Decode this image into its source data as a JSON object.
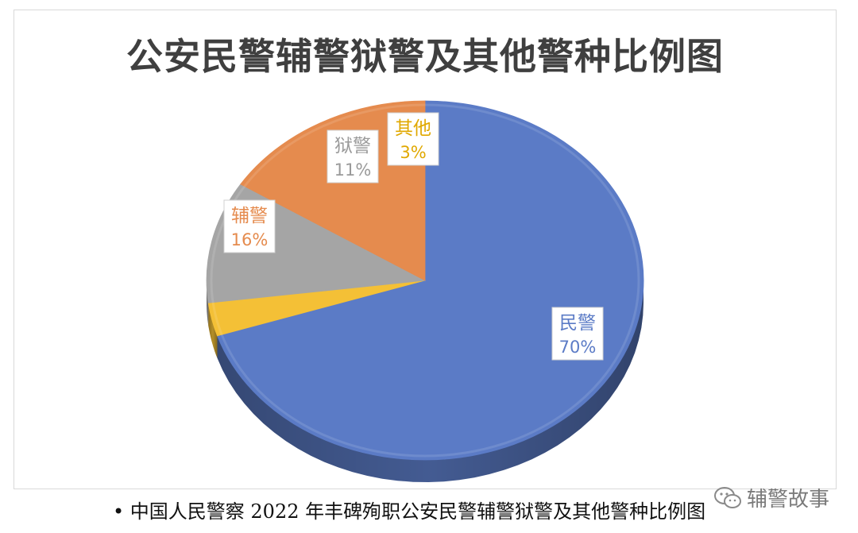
{
  "chart_data": {
    "type": "pie",
    "title": "公安民警辅警狱警及其他警种比例图",
    "slices": [
      {
        "name": "民警",
        "percent_label": "70%",
        "value": 70,
        "color": "#5b7bc6"
      },
      {
        "name": "其他",
        "percent_label": "3%",
        "value": 3,
        "color": "#f4c036"
      },
      {
        "name": "狱警",
        "percent_label": "11%",
        "value": 11,
        "color": "#a5a5a5"
      },
      {
        "name": "辅警",
        "percent_label": "16%",
        "value": 16,
        "color": "#e58b4e"
      }
    ],
    "data_labels": "category and percent, boxed",
    "legend": "none"
  },
  "caption": "• 中国人民警察 2022 年丰碑殉职公安民警辅警狱警及其他警种比例图",
  "watermark": {
    "text": "辅警故事",
    "icon": "wechat-icon"
  }
}
